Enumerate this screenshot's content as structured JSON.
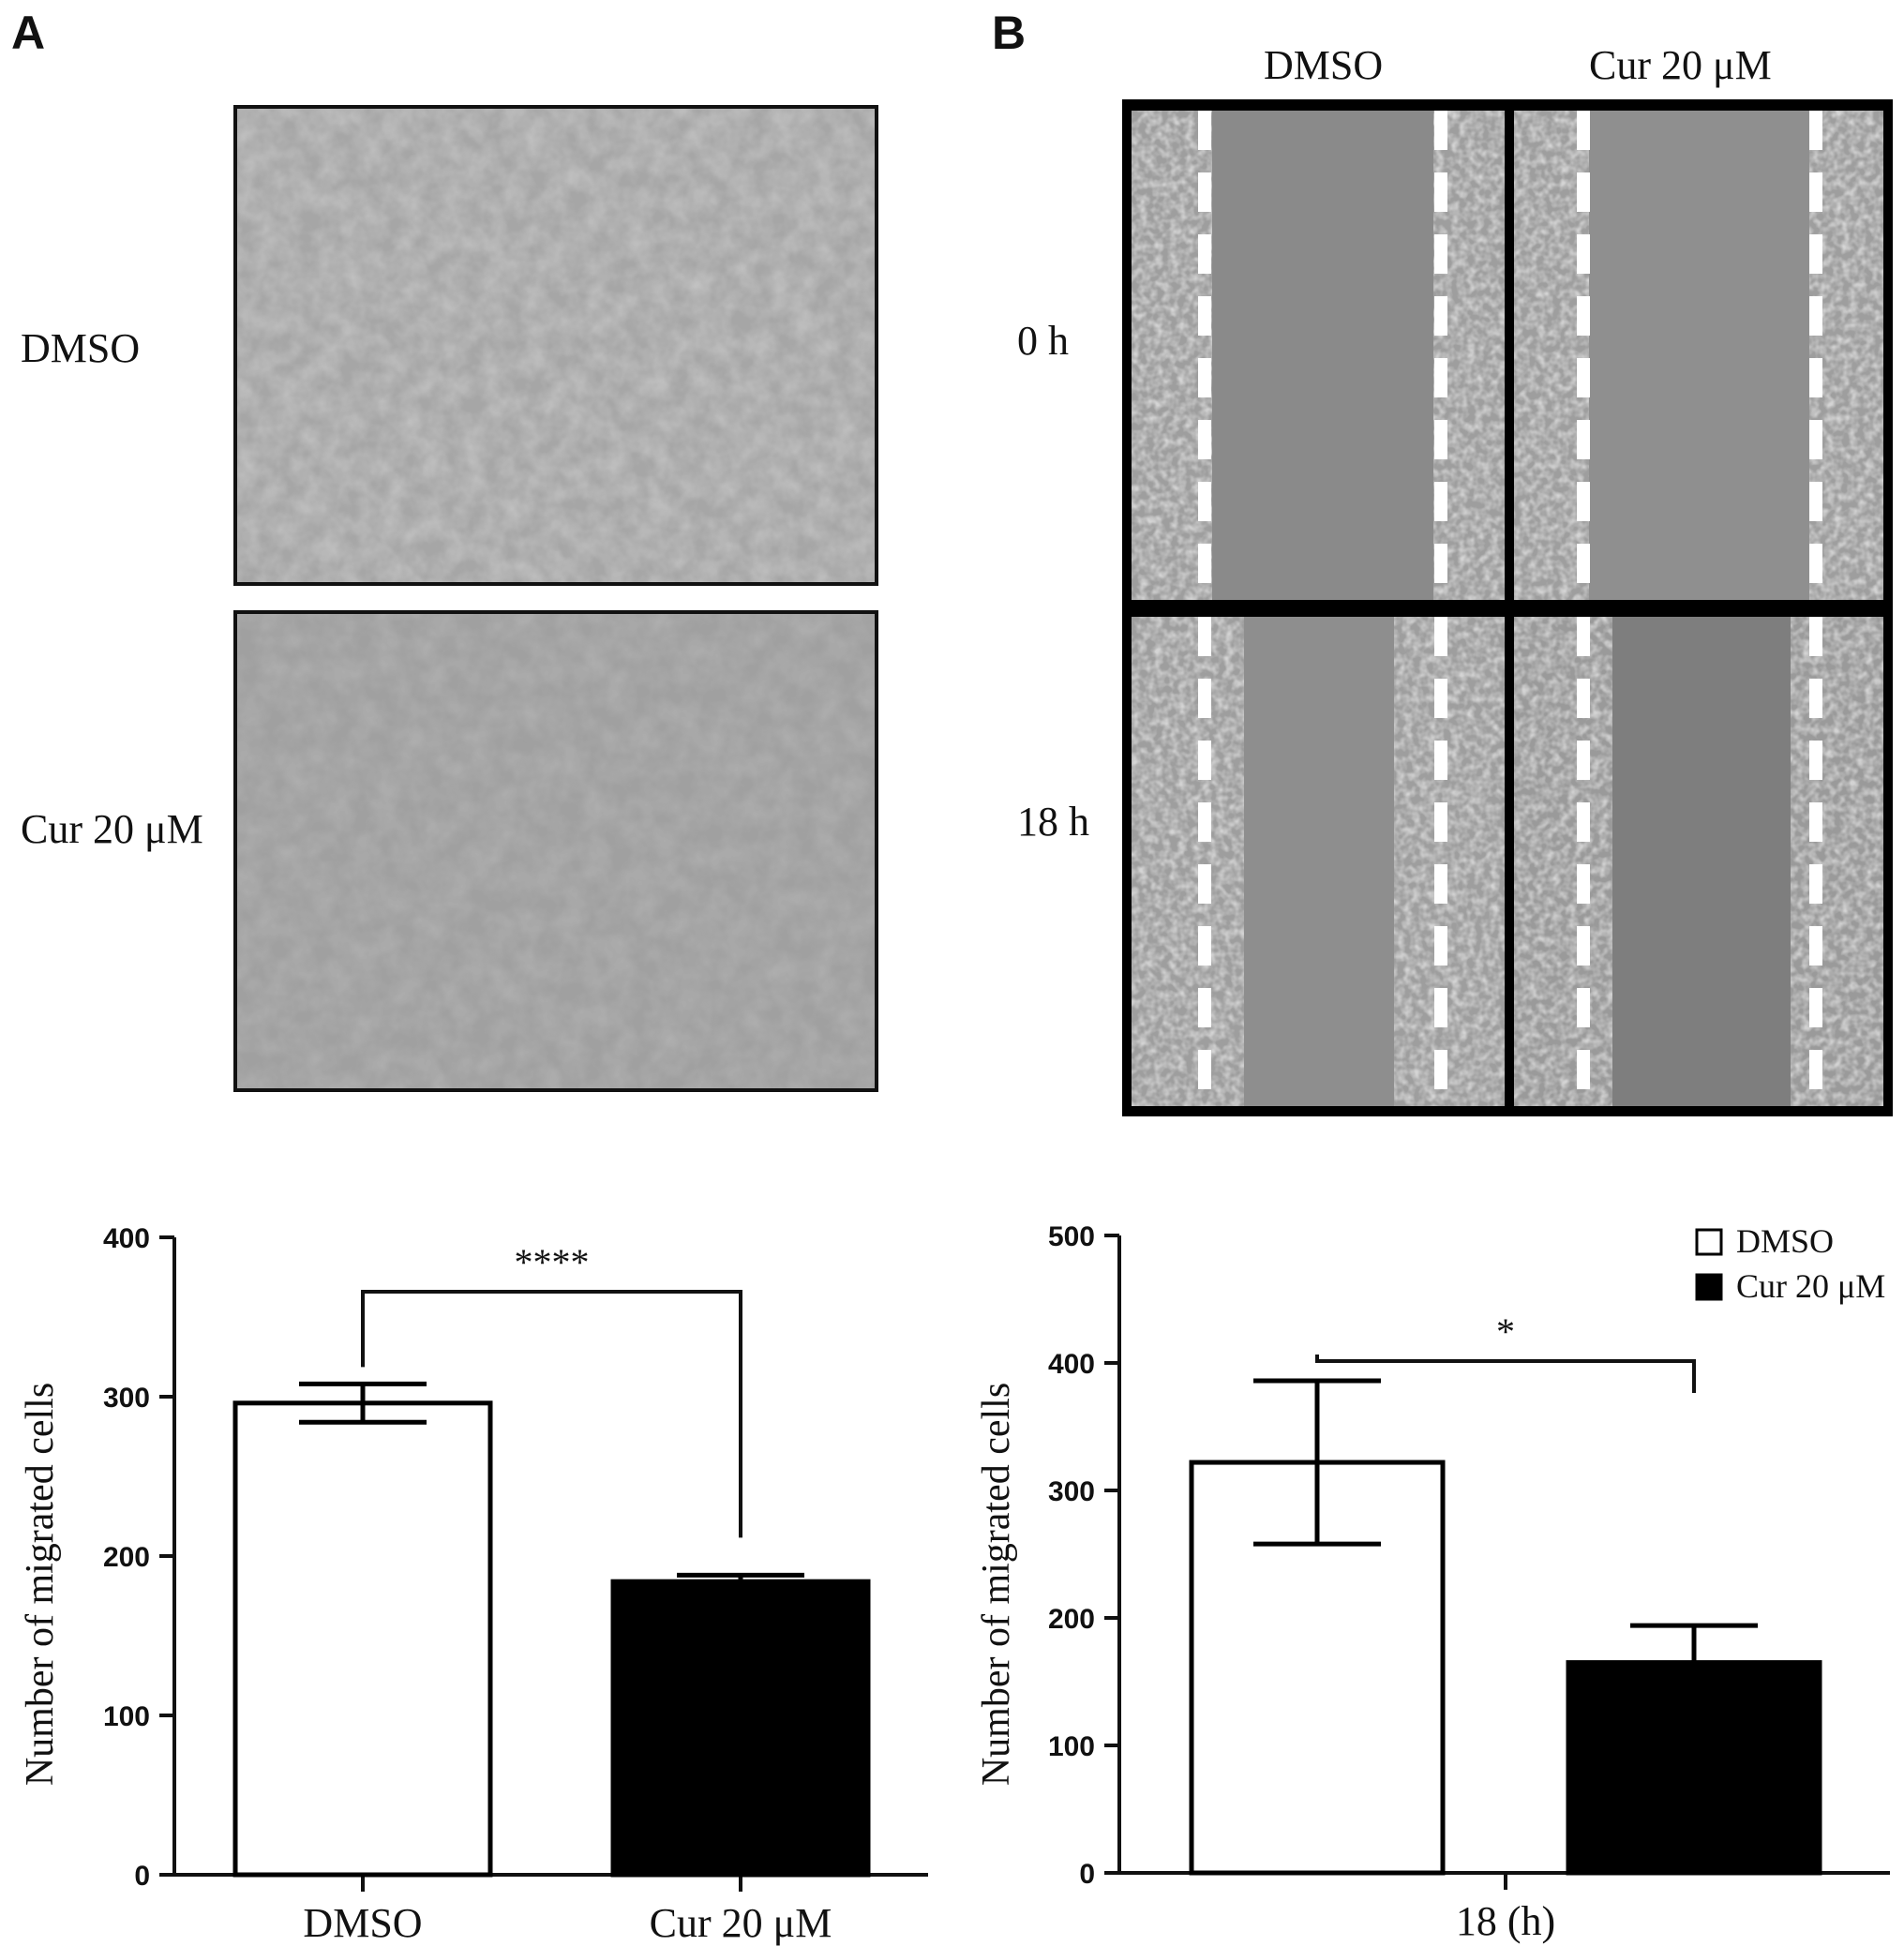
{
  "panel_a": {
    "letter": "A",
    "rows": [
      {
        "label": "DMSO"
      },
      {
        "label": "Cur 20 μM"
      }
    ]
  },
  "panel_b": {
    "letter": "B",
    "columns": [
      {
        "label": "DMSO"
      },
      {
        "label": "Cur 20 μM"
      }
    ],
    "rows": [
      {
        "label": "0 h"
      },
      {
        "label": "18 h"
      }
    ]
  },
  "colors": {
    "cell_fill": "#9e9e9e",
    "scratch_fill": "#8a8a8a",
    "dash_color": "#ffffff",
    "bar_open": "#ffffff",
    "bar_filled": "#000000"
  },
  "chart_data": [
    {
      "type": "bar",
      "categories": [
        "DMSO",
        "Cur 20 μM"
      ],
      "values": [
        296,
        184
      ],
      "errors": [
        12,
        4
      ],
      "bar_fills": [
        "open",
        "filled"
      ],
      "title": "",
      "xlabel": "",
      "ylabel": "Number of migrated cells",
      "ylim": [
        0,
        400
      ],
      "yticks": [
        0,
        100,
        200,
        300,
        400
      ],
      "significance": "****",
      "grid": false
    },
    {
      "type": "bar",
      "categories": [
        "18 (h)"
      ],
      "series": [
        {
          "name": "DMSO",
          "values": [
            322
          ],
          "errors": [
            64
          ]
        },
        {
          "name": "Cur 20 μM",
          "values": [
            165
          ],
          "errors": [
            29
          ]
        }
      ],
      "title": "",
      "xlabel": "",
      "ylabel": "Number of migrated cells",
      "ylim": [
        0,
        500
      ],
      "yticks": [
        0,
        100,
        200,
        300,
        400,
        500
      ],
      "significance": "*",
      "legend_position": "top-right",
      "grid": false
    }
  ]
}
